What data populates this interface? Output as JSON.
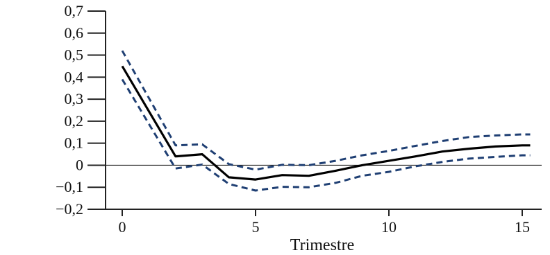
{
  "chart_data": {
    "type": "line",
    "title": "",
    "xlabel": "Trimestre",
    "ylabel": "",
    "xlim": [
      0,
      15.3
    ],
    "ylim": [
      -0.2,
      0.7
    ],
    "x_ticks": [
      0,
      5,
      10,
      15
    ],
    "x_tick_labels": [
      "0",
      "5",
      "10",
      "15"
    ],
    "y_ticks": [
      -0.2,
      -0.1,
      0,
      0.1,
      0.2,
      0.3,
      0.4,
      0.5,
      0.6,
      0.7
    ],
    "y_tick_labels": [
      "−0,2",
      "−0,1",
      "0",
      "0,1",
      "0,2",
      "0,3",
      "0,4",
      "0,5",
      "0,6",
      "0,7"
    ],
    "zero_line": true,
    "grid": false,
    "legend": "none",
    "colors": {
      "estimate": "#000000",
      "band": "#1f3f73",
      "axis": "#222222"
    },
    "series": [
      {
        "role": "estimate",
        "style": "solid",
        "x": [
          0,
          2,
          3,
          4,
          5,
          6,
          7,
          8,
          9,
          10,
          11,
          12,
          13,
          14,
          15,
          15.3
        ],
        "y": [
          0.45,
          0.04,
          0.05,
          -0.055,
          -0.065,
          -0.045,
          -0.048,
          -0.025,
          0.0,
          0.02,
          0.04,
          0.062,
          0.075,
          0.085,
          0.09,
          0.09
        ]
      },
      {
        "role": "upper",
        "style": "dashed",
        "x": [
          0,
          2,
          3,
          4,
          5,
          6,
          7,
          8,
          9,
          10,
          11,
          12,
          13,
          14,
          15,
          15.3
        ],
        "y": [
          0.52,
          0.09,
          0.095,
          0.005,
          -0.02,
          0.002,
          0.0,
          0.02,
          0.045,
          0.065,
          0.088,
          0.11,
          0.128,
          0.135,
          0.14,
          0.14
        ]
      },
      {
        "role": "lower",
        "style": "dashed",
        "x": [
          0,
          2,
          3,
          4,
          5,
          6,
          7,
          8,
          9,
          10,
          11,
          12,
          13,
          14,
          15,
          15.3
        ],
        "y": [
          0.39,
          -0.015,
          0.003,
          -0.085,
          -0.115,
          -0.098,
          -0.1,
          -0.08,
          -0.048,
          -0.03,
          -0.005,
          0.015,
          0.03,
          0.038,
          0.045,
          0.045
        ]
      }
    ]
  }
}
